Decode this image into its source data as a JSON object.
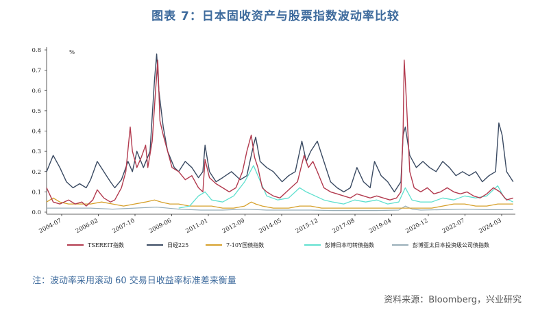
{
  "title": "图表 7：日本固收资产与股票指数波动率比较",
  "note": "注：波动率采用滚动 60 交易日收益率标准差来衡量",
  "source": "资料来源：Bloomberg，兴业研究",
  "chart_data": {
    "type": "line",
    "unit_label": "%",
    "x_ticks": [
      "2004-07",
      "2006-02",
      "2007-10",
      "2009-06",
      "2011-01",
      "2012-09",
      "2014-05",
      "2015-12",
      "2017-08",
      "2019-04",
      "2020-12",
      "2022-07",
      "2024-03"
    ],
    "y_ticks": [
      "0.0",
      "0.1",
      "0.2",
      "0.3",
      "0.4",
      "0.5",
      "0.6",
      "0.7",
      "0.8"
    ],
    "ylim": [
      0,
      0.8
    ],
    "xlim": [
      2004.0,
      2025.3
    ],
    "series": [
      {
        "name": "TSEREIT指数",
        "color": "#b23a4e",
        "width": 1.4,
        "points": [
          [
            2004.0,
            0.12
          ],
          [
            2004.3,
            0.05
          ],
          [
            2004.6,
            0.04
          ],
          [
            2005.0,
            0.06
          ],
          [
            2005.3,
            0.04
          ],
          [
            2005.6,
            0.05
          ],
          [
            2005.8,
            0.03
          ],
          [
            2006.1,
            0.06
          ],
          [
            2006.3,
            0.11
          ],
          [
            2006.6,
            0.07
          ],
          [
            2006.9,
            0.05
          ],
          [
            2007.1,
            0.06
          ],
          [
            2007.4,
            0.12
          ],
          [
            2007.6,
            0.2
          ],
          [
            2007.8,
            0.42
          ],
          [
            2007.9,
            0.3
          ],
          [
            2008.1,
            0.22
          ],
          [
            2008.3,
            0.27
          ],
          [
            2008.5,
            0.33
          ],
          [
            2008.6,
            0.22
          ],
          [
            2008.8,
            0.35
          ],
          [
            2008.95,
            0.6
          ],
          [
            2009.05,
            0.75
          ],
          [
            2009.15,
            0.45
          ],
          [
            2009.3,
            0.38
          ],
          [
            2009.5,
            0.3
          ],
          [
            2009.7,
            0.22
          ],
          [
            2010.0,
            0.2
          ],
          [
            2010.3,
            0.16
          ],
          [
            2010.6,
            0.18
          ],
          [
            2010.9,
            0.12
          ],
          [
            2011.1,
            0.1
          ],
          [
            2011.2,
            0.26
          ],
          [
            2011.4,
            0.17
          ],
          [
            2011.7,
            0.14
          ],
          [
            2012.0,
            0.12
          ],
          [
            2012.3,
            0.1
          ],
          [
            2012.6,
            0.12
          ],
          [
            2012.9,
            0.2
          ],
          [
            2013.1,
            0.3
          ],
          [
            2013.3,
            0.38
          ],
          [
            2013.45,
            0.27
          ],
          [
            2013.6,
            0.22
          ],
          [
            2013.8,
            0.12
          ],
          [
            2014.0,
            0.1
          ],
          [
            2014.3,
            0.08
          ],
          [
            2014.6,
            0.07
          ],
          [
            2014.9,
            0.1
          ],
          [
            2015.1,
            0.12
          ],
          [
            2015.4,
            0.15
          ],
          [
            2015.7,
            0.28
          ],
          [
            2015.9,
            0.22
          ],
          [
            2016.1,
            0.25
          ],
          [
            2016.3,
            0.2
          ],
          [
            2016.6,
            0.12
          ],
          [
            2016.9,
            0.1
          ],
          [
            2017.2,
            0.09
          ],
          [
            2017.5,
            0.08
          ],
          [
            2017.8,
            0.07
          ],
          [
            2018.1,
            0.09
          ],
          [
            2018.4,
            0.08
          ],
          [
            2018.7,
            0.07
          ],
          [
            2019.0,
            0.08
          ],
          [
            2019.3,
            0.07
          ],
          [
            2019.6,
            0.06
          ],
          [
            2019.9,
            0.07
          ],
          [
            2020.1,
            0.1
          ],
          [
            2020.2,
            0.4
          ],
          [
            2020.25,
            0.75
          ],
          [
            2020.35,
            0.55
          ],
          [
            2020.5,
            0.2
          ],
          [
            2020.7,
            0.12
          ],
          [
            2021.0,
            0.1
          ],
          [
            2021.3,
            0.12
          ],
          [
            2021.6,
            0.09
          ],
          [
            2021.9,
            0.1
          ],
          [
            2022.2,
            0.12
          ],
          [
            2022.5,
            0.1
          ],
          [
            2022.8,
            0.09
          ],
          [
            2023.1,
            0.1
          ],
          [
            2023.4,
            0.08
          ],
          [
            2023.7,
            0.07
          ],
          [
            2024.0,
            0.09
          ],
          [
            2024.3,
            0.12
          ],
          [
            2024.6,
            0.1
          ],
          [
            2024.9,
            0.06
          ],
          [
            2025.2,
            0.07
          ]
        ]
      },
      {
        "name": "日经225",
        "color": "#3a4a62",
        "width": 1.4,
        "points": [
          [
            2004.0,
            0.2
          ],
          [
            2004.3,
            0.28
          ],
          [
            2004.6,
            0.22
          ],
          [
            2004.9,
            0.15
          ],
          [
            2005.2,
            0.12
          ],
          [
            2005.5,
            0.14
          ],
          [
            2005.8,
            0.12
          ],
          [
            2006.0,
            0.16
          ],
          [
            2006.3,
            0.25
          ],
          [
            2006.6,
            0.2
          ],
          [
            2006.9,
            0.15
          ],
          [
            2007.1,
            0.12
          ],
          [
            2007.4,
            0.16
          ],
          [
            2007.7,
            0.25
          ],
          [
            2007.9,
            0.2
          ],
          [
            2008.1,
            0.3
          ],
          [
            2008.4,
            0.22
          ],
          [
            2008.7,
            0.3
          ],
          [
            2008.9,
            0.65
          ],
          [
            2009.0,
            0.78
          ],
          [
            2009.1,
            0.6
          ],
          [
            2009.3,
            0.42
          ],
          [
            2009.5,
            0.3
          ],
          [
            2009.8,
            0.22
          ],
          [
            2010.0,
            0.2
          ],
          [
            2010.3,
            0.25
          ],
          [
            2010.6,
            0.22
          ],
          [
            2010.9,
            0.17
          ],
          [
            2011.1,
            0.2
          ],
          [
            2011.2,
            0.33
          ],
          [
            2011.4,
            0.2
          ],
          [
            2011.7,
            0.15
          ],
          [
            2012.0,
            0.17
          ],
          [
            2012.4,
            0.2
          ],
          [
            2012.8,
            0.16
          ],
          [
            2013.1,
            0.18
          ],
          [
            2013.4,
            0.33
          ],
          [
            2013.5,
            0.37
          ],
          [
            2013.7,
            0.25
          ],
          [
            2014.0,
            0.22
          ],
          [
            2014.3,
            0.2
          ],
          [
            2014.7,
            0.15
          ],
          [
            2015.0,
            0.18
          ],
          [
            2015.3,
            0.2
          ],
          [
            2015.6,
            0.35
          ],
          [
            2015.8,
            0.25
          ],
          [
            2016.0,
            0.3
          ],
          [
            2016.3,
            0.35
          ],
          [
            2016.6,
            0.25
          ],
          [
            2016.9,
            0.15
          ],
          [
            2017.2,
            0.12
          ],
          [
            2017.5,
            0.1
          ],
          [
            2017.8,
            0.12
          ],
          [
            2018.1,
            0.22
          ],
          [
            2018.4,
            0.15
          ],
          [
            2018.7,
            0.12
          ],
          [
            2018.9,
            0.25
          ],
          [
            2019.2,
            0.18
          ],
          [
            2019.5,
            0.15
          ],
          [
            2019.8,
            0.1
          ],
          [
            2020.1,
            0.15
          ],
          [
            2020.2,
            0.38
          ],
          [
            2020.3,
            0.42
          ],
          [
            2020.5,
            0.28
          ],
          [
            2020.8,
            0.22
          ],
          [
            2021.1,
            0.25
          ],
          [
            2021.4,
            0.22
          ],
          [
            2021.7,
            0.2
          ],
          [
            2022.0,
            0.25
          ],
          [
            2022.3,
            0.22
          ],
          [
            2022.6,
            0.18
          ],
          [
            2022.9,
            0.2
          ],
          [
            2023.2,
            0.18
          ],
          [
            2023.5,
            0.2
          ],
          [
            2023.8,
            0.15
          ],
          [
            2024.1,
            0.18
          ],
          [
            2024.4,
            0.2
          ],
          [
            2024.55,
            0.44
          ],
          [
            2024.7,
            0.38
          ],
          [
            2024.9,
            0.2
          ],
          [
            2025.2,
            0.15
          ]
        ]
      },
      {
        "name": "7-10Y国债指数",
        "color": "#d6a02a",
        "width": 1.3,
        "points": [
          [
            2004.0,
            0.05
          ],
          [
            2004.3,
            0.07
          ],
          [
            2004.6,
            0.05
          ],
          [
            2005.0,
            0.04
          ],
          [
            2005.5,
            0.04
          ],
          [
            2006.0,
            0.04
          ],
          [
            2006.5,
            0.05
          ],
          [
            2007.0,
            0.04
          ],
          [
            2007.5,
            0.03
          ],
          [
            2008.0,
            0.04
          ],
          [
            2008.5,
            0.05
          ],
          [
            2008.9,
            0.06
          ],
          [
            2009.2,
            0.05
          ],
          [
            2009.6,
            0.04
          ],
          [
            2010.0,
            0.04
          ],
          [
            2010.5,
            0.03
          ],
          [
            2011.0,
            0.03
          ],
          [
            2011.5,
            0.03
          ],
          [
            2012.0,
            0.02
          ],
          [
            2012.5,
            0.02
          ],
          [
            2013.0,
            0.03
          ],
          [
            2013.3,
            0.05
          ],
          [
            2013.5,
            0.04
          ],
          [
            2013.8,
            0.03
          ],
          [
            2014.3,
            0.02
          ],
          [
            2015.0,
            0.02
          ],
          [
            2015.5,
            0.03
          ],
          [
            2016.0,
            0.03
          ],
          [
            2016.5,
            0.02
          ],
          [
            2017.0,
            0.02
          ],
          [
            2017.5,
            0.02
          ],
          [
            2018.0,
            0.02
          ],
          [
            2018.5,
            0.02
          ],
          [
            2019.0,
            0.02
          ],
          [
            2019.5,
            0.02
          ],
          [
            2020.0,
            0.02
          ],
          [
            2020.5,
            0.02
          ],
          [
            2021.0,
            0.02
          ],
          [
            2021.5,
            0.02
          ],
          [
            2022.0,
            0.03
          ],
          [
            2022.5,
            0.04
          ],
          [
            2023.0,
            0.04
          ],
          [
            2023.5,
            0.03
          ],
          [
            2024.0,
            0.03
          ],
          [
            2024.5,
            0.04
          ],
          [
            2025.2,
            0.04
          ]
        ]
      },
      {
        "name": "彭博日本可转债指数",
        "color": "#5fe0cf",
        "width": 1.3,
        "points": [
          [
            2010.0,
            0.02
          ],
          [
            2010.5,
            0.03
          ],
          [
            2010.9,
            0.08
          ],
          [
            2011.2,
            0.1
          ],
          [
            2011.5,
            0.06
          ],
          [
            2012.0,
            0.05
          ],
          [
            2012.5,
            0.08
          ],
          [
            2013.0,
            0.15
          ],
          [
            2013.4,
            0.23
          ],
          [
            2013.6,
            0.18
          ],
          [
            2014.0,
            0.08
          ],
          [
            2014.5,
            0.06
          ],
          [
            2015.0,
            0.07
          ],
          [
            2015.5,
            0.12
          ],
          [
            2015.8,
            0.1
          ],
          [
            2016.2,
            0.08
          ],
          [
            2016.6,
            0.06
          ],
          [
            2017.0,
            0.05
          ],
          [
            2017.5,
            0.04
          ],
          [
            2018.0,
            0.06
          ],
          [
            2018.5,
            0.05
          ],
          [
            2019.0,
            0.06
          ],
          [
            2019.5,
            0.04
          ],
          [
            2020.0,
            0.05
          ],
          [
            2020.3,
            0.12
          ],
          [
            2020.6,
            0.06
          ],
          [
            2021.0,
            0.05
          ],
          [
            2021.5,
            0.05
          ],
          [
            2022.0,
            0.07
          ],
          [
            2022.5,
            0.06
          ],
          [
            2023.0,
            0.08
          ],
          [
            2023.5,
            0.07
          ],
          [
            2024.0,
            0.08
          ],
          [
            2024.5,
            0.13
          ],
          [
            2024.8,
            0.07
          ],
          [
            2025.2,
            0.05
          ]
        ]
      },
      {
        "name": "彭博亚太日本投资级公司债指数",
        "color": "#98aeb8",
        "width": 1.2,
        "points": [
          [
            2004.0,
            0.02
          ],
          [
            2005.0,
            0.02
          ],
          [
            2006.0,
            0.02
          ],
          [
            2007.0,
            0.015
          ],
          [
            2008.0,
            0.02
          ],
          [
            2009.0,
            0.025
          ],
          [
            2010.0,
            0.015
          ],
          [
            2011.0,
            0.01
          ],
          [
            2012.0,
            0.01
          ],
          [
            2013.0,
            0.015
          ],
          [
            2014.0,
            0.01
          ],
          [
            2015.0,
            0.01
          ],
          [
            2016.0,
            0.01
          ],
          [
            2017.0,
            0.008
          ],
          [
            2018.0,
            0.008
          ],
          [
            2019.0,
            0.008
          ],
          [
            2020.0,
            0.01
          ],
          [
            2020.3,
            0.03
          ],
          [
            2020.6,
            0.015
          ],
          [
            2021.0,
            0.01
          ],
          [
            2022.0,
            0.012
          ],
          [
            2023.0,
            0.015
          ],
          [
            2024.0,
            0.012
          ],
          [
            2025.2,
            0.012
          ]
        ]
      }
    ]
  }
}
